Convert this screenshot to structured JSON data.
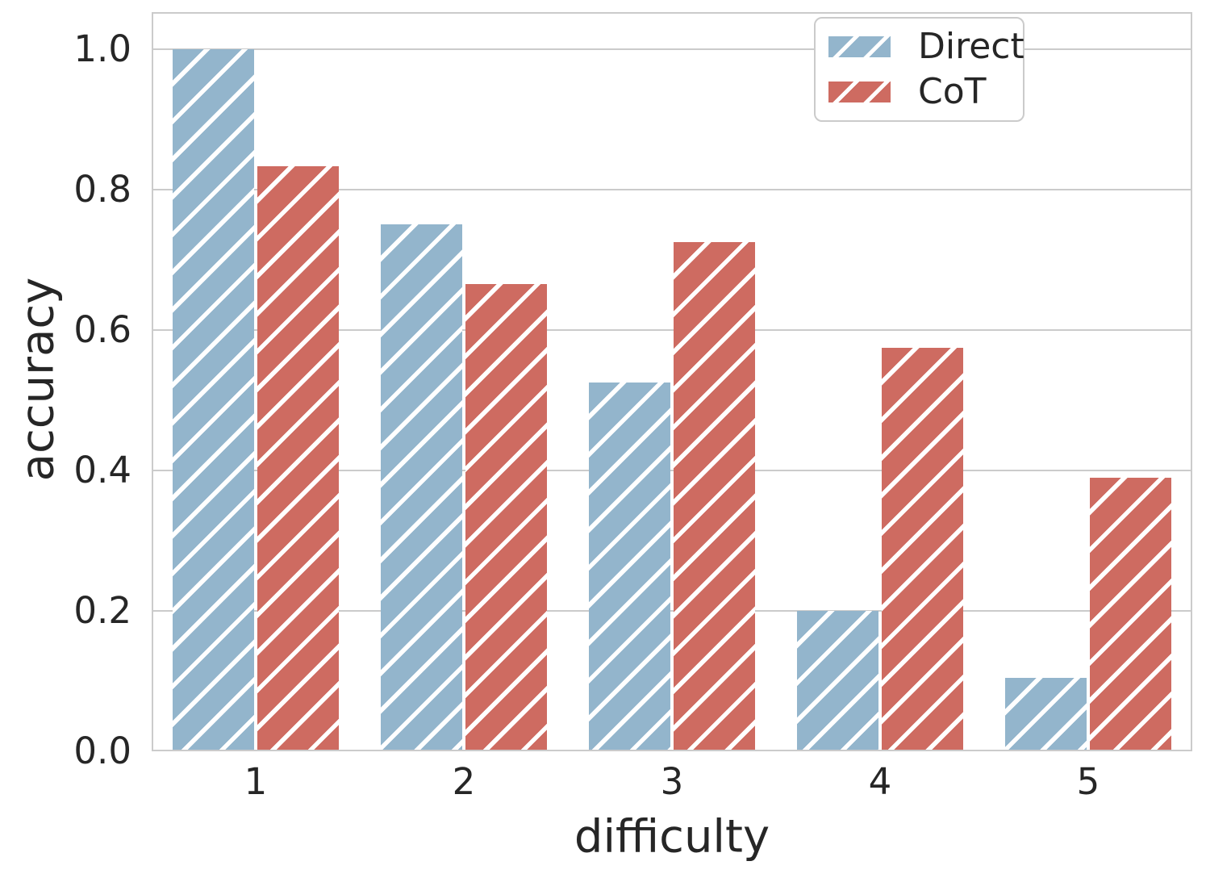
{
  "chart_data": {
    "type": "bar",
    "categories": [
      "1",
      "2",
      "3",
      "4",
      "5"
    ],
    "series": [
      {
        "name": "Direct",
        "color": "#93b5cc",
        "hatch": "/",
        "values": [
          1.0,
          0.75,
          0.525,
          0.2,
          0.105
        ]
      },
      {
        "name": "CoT",
        "color": "#ce6b61",
        "hatch": "/",
        "values": [
          0.833,
          0.665,
          0.725,
          0.575,
          0.39
        ]
      }
    ],
    "title": "",
    "xlabel": "difficulty",
    "ylabel": "accuracy",
    "ylim": [
      0.0,
      1.053
    ],
    "yticks": [
      0.0,
      0.2,
      0.4,
      0.6,
      0.8,
      1.0
    ],
    "ytick_labels": [
      "0.0",
      "0.2",
      "0.4",
      "0.6",
      "0.8",
      "1.0"
    ],
    "grid": true,
    "grid_axis": "y",
    "legend_position": "upper right",
    "hatch_color": "#ffffff"
  },
  "colors": {
    "grid": "#cbcbcb",
    "spine": "#cbcbcb",
    "text": "#262626",
    "background": "#ffffff"
  }
}
